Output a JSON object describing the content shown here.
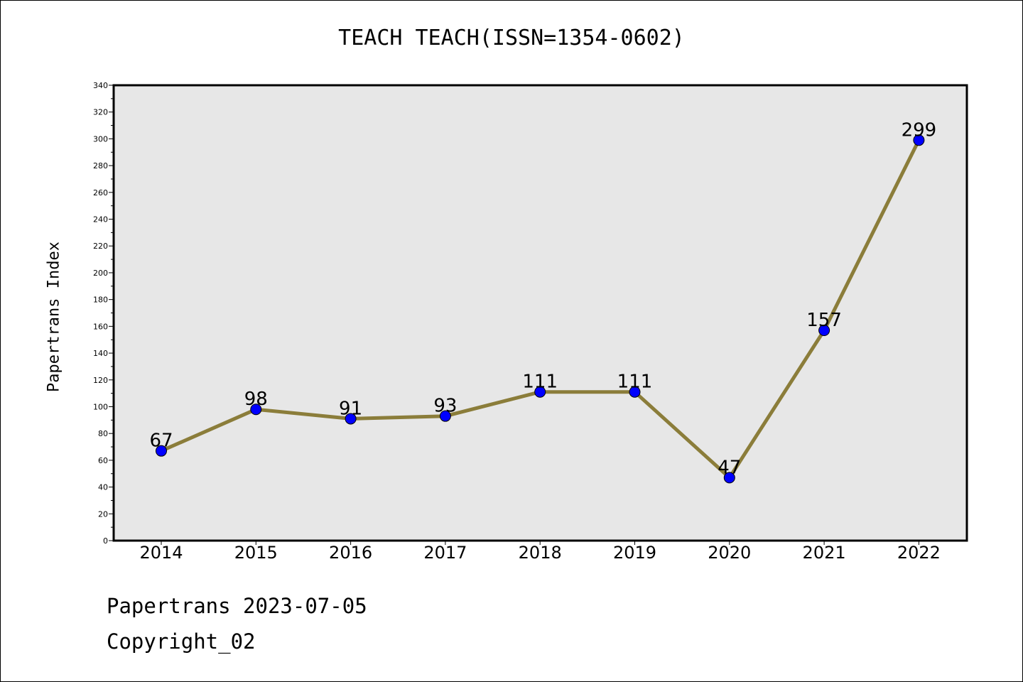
{
  "chart_data": {
    "type": "line",
    "title": "TEACH TEACH(ISSN=1354-0602)",
    "xlabel": "",
    "ylabel": "Papertrans Index",
    "categories": [
      "2014",
      "2015",
      "2016",
      "2017",
      "2018",
      "2019",
      "2020",
      "2021",
      "2022"
    ],
    "values": [
      67,
      98,
      91,
      93,
      111,
      111,
      47,
      157,
      299
    ],
    "data_labels": [
      "67",
      "98",
      "91",
      "93",
      "111",
      "111",
      "47",
      "157",
      "299"
    ],
    "ylim": [
      0,
      340
    ],
    "y_ticks": [
      0,
      20,
      40,
      60,
      80,
      100,
      120,
      140,
      160,
      180,
      200,
      220,
      240,
      260,
      280,
      300,
      320,
      340
    ],
    "grid": false,
    "line_color": "#8B7D3A",
    "marker_color": "#0000FF",
    "plot_background": "#E7E7E7"
  },
  "footer": {
    "date": "Papertrans 2023-07-05",
    "copyright": "Copyright_02"
  }
}
